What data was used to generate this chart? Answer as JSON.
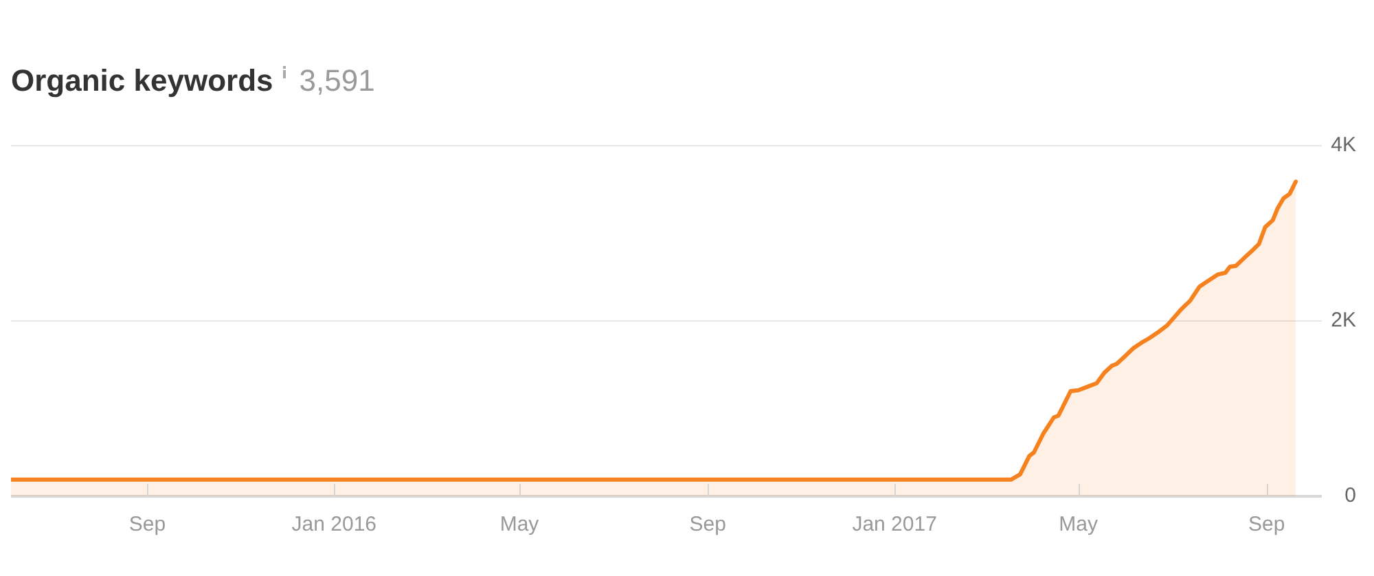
{
  "chart_data": {
    "type": "area",
    "title": "Organic keywords",
    "subtitle": "3,591",
    "x": [
      "2015-06-04",
      "2016-01-01",
      "2016-09-01",
      "2017-03-18",
      "2017-03-24",
      "2017-03-30",
      "2017-04-02",
      "2017-04-08",
      "2017-04-15",
      "2017-04-18",
      "2017-04-22",
      "2017-04-26",
      "2017-05-01",
      "2017-05-07",
      "2017-05-13",
      "2017-05-18",
      "2017-05-23",
      "2017-05-26",
      "2017-05-31",
      "2017-06-06",
      "2017-06-12",
      "2017-06-16",
      "2017-06-22",
      "2017-06-28",
      "2017-07-07",
      "2017-07-13",
      "2017-07-19",
      "2017-07-25",
      "2017-07-31",
      "2017-08-05",
      "2017-08-08",
      "2017-08-12",
      "2017-08-18",
      "2017-08-23",
      "2017-08-27",
      "2017-08-31",
      "2017-09-05",
      "2017-09-08",
      "2017-09-12",
      "2017-09-16",
      "2017-09-20"
    ],
    "series": [
      {
        "color": "#f5821f",
        "values": [
          190,
          190,
          190,
          190,
          250,
          460,
          500,
          710,
          900,
          920,
          1060,
          1200,
          1210,
          1250,
          1290,
          1410,
          1490,
          1510,
          1590,
          1690,
          1760,
          1800,
          1870,
          1950,
          2130,
          2230,
          2390,
          2460,
          2530,
          2550,
          2620,
          2630,
          2730,
          2810,
          2880,
          3070,
          3150,
          3280,
          3400,
          3450,
          3590
        ]
      }
    ],
    "xlim": [
      "2015-06-04",
      "2017-10-07"
    ],
    "xticks": [
      {
        "value": "2015-09-01",
        "label": "Sep"
      },
      {
        "value": "2016-01-01",
        "label": "Jan 2016"
      },
      {
        "value": "2016-05-01",
        "label": "May"
      },
      {
        "value": "2016-09-01",
        "label": "Sep"
      },
      {
        "value": "2017-01-01",
        "label": "Jan 2017"
      },
      {
        "value": "2017-05-01",
        "label": "May"
      },
      {
        "value": "2017-09-01",
        "label": "Sep"
      }
    ],
    "ylim": [
      0,
      4000
    ],
    "yticks": [
      0,
      {
        "value": 2000,
        "label": "2K"
      },
      {
        "value": 4000,
        "label": "4K"
      }
    ],
    "grid": "y"
  }
}
